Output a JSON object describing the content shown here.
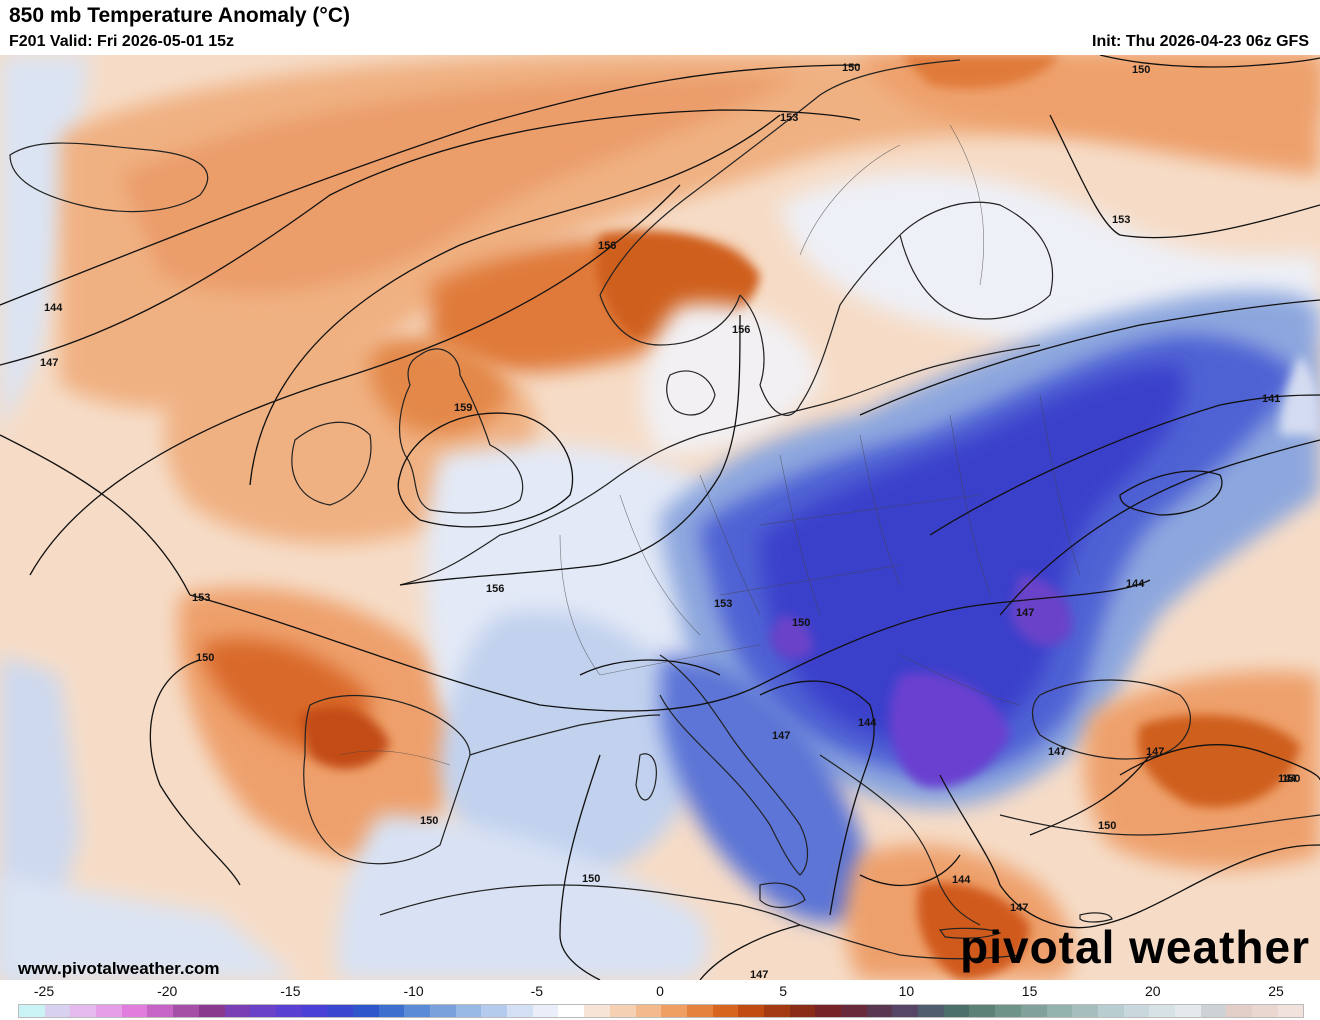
{
  "header": {
    "title": "850 mb Temperature Anomaly (°C)",
    "valid": "F201 Valid: Fri 2026-05-01 15z",
    "init": "Init: Thu 2026-04-23 06z GFS"
  },
  "map": {
    "region": "Europe",
    "variable": "850 mb temperature anomaly",
    "contour_labels": [
      "150",
      "150",
      "153",
      "153",
      "156",
      "156",
      "144",
      "147",
      "159",
      "156",
      "153",
      "153",
      "150",
      "150",
      "147",
      "144",
      "147",
      "150",
      "144",
      "147",
      "141",
      "144",
      "147",
      "150",
      "150",
      "144",
      "147",
      "147",
      "150"
    ]
  },
  "colorbar": {
    "ticks": [
      "-25",
      "-20",
      "-15",
      "-10",
      "-5",
      "0",
      "5",
      "10",
      "15",
      "20",
      "25"
    ],
    "colors": [
      "#c9f3f4",
      "#d9d1f0",
      "#e4b9ee",
      "#e79ee8",
      "#e07ddd",
      "#c765c7",
      "#a54fa7",
      "#8a3a8e",
      "#7a3fb5",
      "#6a42c9",
      "#5a3fd3",
      "#4a3fd6",
      "#3b46d0",
      "#2e55c9",
      "#3d6fce",
      "#5b8ad6",
      "#7ba1dd",
      "#98b8e5",
      "#b5cbee",
      "#d2dff5",
      "#e9eef9",
      "#ffffff",
      "#f8e4d6",
      "#f6d0b2",
      "#f3bb8d",
      "#ef9f62",
      "#e4823e",
      "#d7651f",
      "#c24b12",
      "#a33a12",
      "#8a2c18",
      "#772427",
      "#692b3b",
      "#5b3650",
      "#564566",
      "#4f5d6e",
      "#4b6f6a",
      "#5c8177",
      "#6e9388",
      "#80a29b",
      "#93b1ad",
      "#a6bfbe",
      "#b8cdcf",
      "#c9d8dc",
      "#d7e2e6",
      "#e3e9ed",
      "#cfd2d4",
      "#e4cfc8",
      "#ead7d0",
      "#f2e2dd"
    ]
  },
  "footer": {
    "website": "www.pivotalweather.com",
    "brand": "pivotal weather"
  }
}
